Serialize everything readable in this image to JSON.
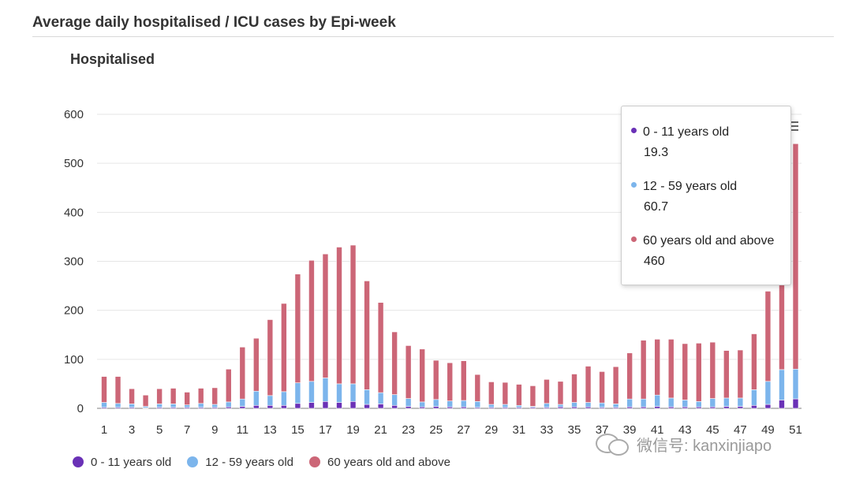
{
  "header": {
    "title": "Average daily hospitalised / ICU cases by Epi-week"
  },
  "chart_data": {
    "type": "bar",
    "stacked": true,
    "title": "Hospitalised",
    "xlabel": "",
    "ylabel": "",
    "ylim": [
      0,
      600
    ],
    "y_ticks": [
      "0",
      "100",
      "200",
      "300",
      "400",
      "500",
      "600"
    ],
    "x_tick_labels": [
      "1",
      "3",
      "5",
      "7",
      "9",
      "11",
      "13",
      "15",
      "17",
      "19",
      "21",
      "23",
      "25",
      "27",
      "29",
      "31",
      "33",
      "35",
      "37",
      "39",
      "41",
      "43",
      "45",
      "47",
      "49",
      "51"
    ],
    "categories": [
      1,
      2,
      3,
      4,
      5,
      6,
      7,
      8,
      9,
      10,
      11,
      12,
      13,
      14,
      15,
      16,
      17,
      18,
      19,
      20,
      21,
      22,
      23,
      24,
      25,
      26,
      27,
      28,
      29,
      30,
      31,
      32,
      33,
      34,
      35,
      36,
      37,
      38,
      39,
      40,
      41,
      42,
      43,
      44,
      45,
      46,
      47,
      48,
      49,
      50,
      51
    ],
    "grid": "horizontal",
    "legend_position": "bottom-left",
    "series": [
      {
        "name": "0 - 11 years old",
        "color": "#6a31b6",
        "values": [
          2,
          2,
          2,
          1,
          2,
          2,
          2,
          2,
          2,
          3,
          4,
          6,
          6,
          6,
          10,
          12,
          14,
          12,
          14,
          8,
          9,
          6,
          4,
          3,
          4,
          3,
          3,
          2,
          2,
          2,
          2,
          2,
          2,
          3,
          3,
          3,
          2,
          2,
          3,
          3,
          4,
          3,
          3,
          3,
          3,
          4,
          4,
          6,
          8,
          17,
          19.3
        ]
      },
      {
        "name": "12 - 59 years old",
        "color": "#7cb5ec",
        "values": [
          10,
          8,
          7,
          3,
          7,
          7,
          5,
          8,
          6,
          10,
          15,
          29,
          20,
          28,
          42,
          43,
          48,
          38,
          36,
          30,
          23,
          22,
          16,
          10,
          14,
          12,
          13,
          12,
          6,
          6,
          4,
          2,
          8,
          5,
          9,
          9,
          9,
          7,
          16,
          16,
          23,
          18,
          14,
          11,
          17,
          17,
          17,
          32,
          47,
          62,
          60.7
        ]
      },
      {
        "name": "60 years old and above",
        "color": "#cc6677",
        "values": [
          53,
          55,
          31,
          23,
          31,
          32,
          26,
          31,
          34,
          67,
          106,
          108,
          155,
          180,
          222,
          247,
          253,
          279,
          283,
          222,
          184,
          128,
          108,
          108,
          80,
          78,
          81,
          55,
          46,
          45,
          43,
          42,
          49,
          47,
          58,
          74,
          64,
          76,
          94,
          120,
          114,
          120,
          115,
          119,
          115,
          97,
          98,
          114,
          184,
          211,
          460
        ]
      }
    ]
  },
  "tooltip": {
    "entries": [
      {
        "name": "0 - 11 years old",
        "value": "19.3"
      },
      {
        "name": "12 - 59 years old",
        "value": "60.7"
      },
      {
        "name": "60 years old and above",
        "value": "460"
      }
    ]
  },
  "watermark": {
    "text": "微信号: kanxinjiapo"
  },
  "icons": {
    "menu": "hamburger-menu-icon",
    "watermark": "wechat-icon"
  }
}
